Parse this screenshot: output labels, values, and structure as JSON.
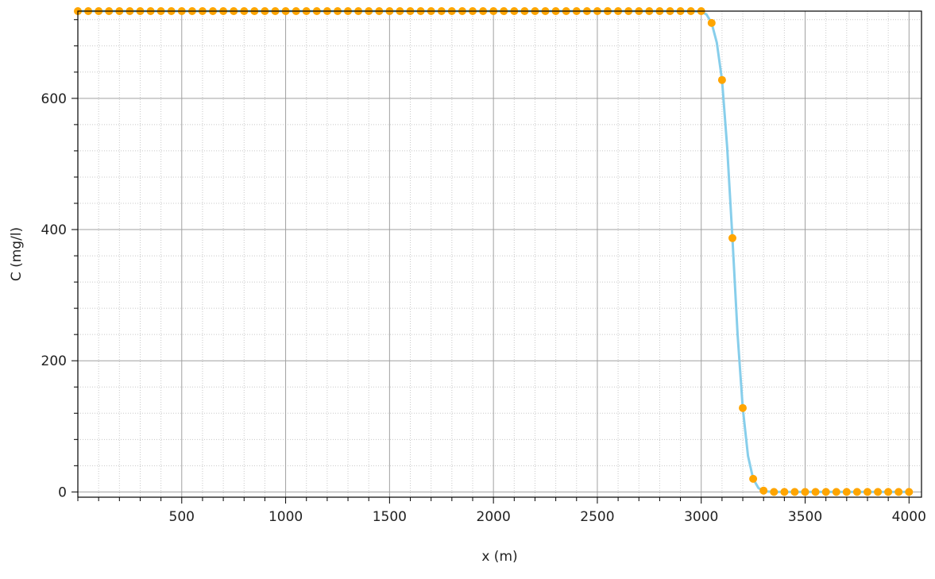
{
  "chart_data": {
    "type": "line",
    "xlabel": "x (m)",
    "ylabel": "C (mg/l)",
    "xlim": [
      0,
      4060
    ],
    "ylim": [
      -8,
      733
    ],
    "x_ticks": [
      500,
      1000,
      1500,
      2000,
      2500,
      3000,
      3500,
      4000
    ],
    "y_ticks": [
      0,
      200,
      400,
      600
    ],
    "grid": true,
    "legend": "none",
    "colors": {
      "line": "#87ceeb",
      "points": "#ffa500",
      "grid_major": "#a0a0a0",
      "grid_minor": "#c8c8c8",
      "frame": "#000000"
    },
    "series": [
      {
        "style": "line",
        "x": [
          0,
          2900,
          2950,
          3000,
          3025,
          3050,
          3075,
          3100,
          3125,
          3150,
          3175,
          3200,
          3225,
          3250,
          3275,
          3300,
          3350,
          4000
        ],
        "values": [
          733,
          733,
          733,
          732,
          728,
          715,
          685,
          628,
          525,
          387,
          240,
          128,
          55,
          20,
          6,
          1,
          0,
          0
        ]
      },
      {
        "style": "markers",
        "x": [
          0,
          50,
          100,
          150,
          200,
          250,
          300,
          350,
          400,
          450,
          500,
          550,
          600,
          650,
          700,
          750,
          800,
          850,
          900,
          950,
          1000,
          1050,
          1100,
          1150,
          1200,
          1250,
          1300,
          1350,
          1400,
          1450,
          1500,
          1550,
          1600,
          1650,
          1700,
          1750,
          1800,
          1850,
          1900,
          1950,
          2000,
          2050,
          2100,
          2150,
          2200,
          2250,
          2300,
          2350,
          2400,
          2450,
          2500,
          2550,
          2600,
          2650,
          2700,
          2750,
          2800,
          2850,
          2900,
          2950,
          3000,
          3050,
          3100,
          3150,
          3200,
          3250,
          3300,
          3350,
          3400,
          3450,
          3500,
          3550,
          3600,
          3650,
          3700,
          3750,
          3800,
          3850,
          3900,
          3950,
          4000
        ],
        "values": [
          733,
          733,
          733,
          733,
          733,
          733,
          733,
          733,
          733,
          733,
          733,
          733,
          733,
          733,
          733,
          733,
          733,
          733,
          733,
          733,
          733,
          733,
          733,
          733,
          733,
          733,
          733,
          733,
          733,
          733,
          733,
          733,
          733,
          733,
          733,
          733,
          733,
          733,
          733,
          733,
          733,
          733,
          733,
          733,
          733,
          733,
          733,
          733,
          733,
          733,
          733,
          733,
          733,
          733,
          733,
          733,
          733,
          733,
          733,
          733,
          733,
          715,
          628,
          387,
          128,
          20,
          2,
          0,
          0,
          0,
          0,
          0,
          0,
          0,
          0,
          0,
          0,
          0,
          0,
          0,
          0
        ]
      }
    ]
  }
}
